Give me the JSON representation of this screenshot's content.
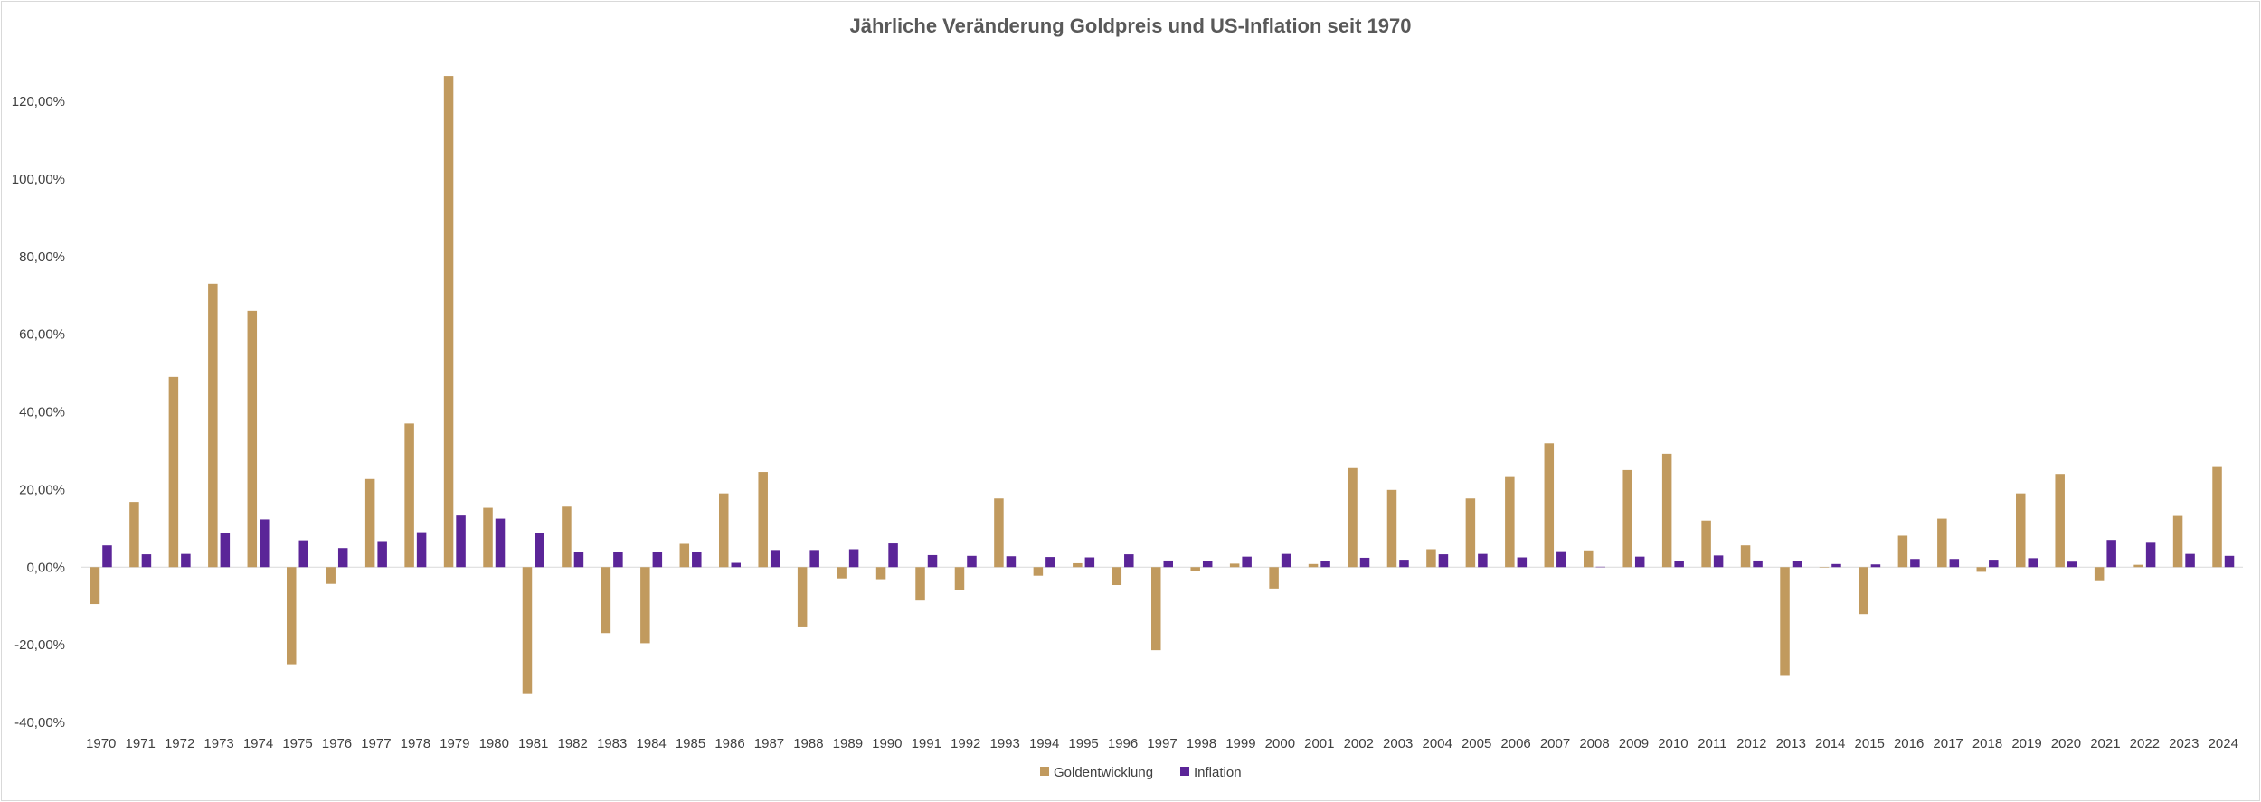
{
  "chart_data": {
    "type": "bar",
    "title": "Jährliche Veränderung Goldpreis und US-Inflation seit 1970",
    "xlabel": "",
    "ylabel": "",
    "ylim": [
      -0.4,
      1.3
    ],
    "y_ticks": [
      -0.4,
      -0.2,
      0,
      0.2,
      0.4,
      0.6,
      0.8,
      1.0,
      1.2
    ],
    "y_tick_labels": [
      "-40,00%",
      "-20,00%",
      "0,00%",
      "20,00%",
      "40,00%",
      "60,00%",
      "80,00%",
      "100,00%",
      "120,00%"
    ],
    "grid": false,
    "legend_position": "bottom-center",
    "categories": [
      "1970",
      "1971",
      "1972",
      "1973",
      "1974",
      "1975",
      "1976",
      "1977",
      "1978",
      "1979",
      "1980",
      "1981",
      "1982",
      "1983",
      "1984",
      "1985",
      "1986",
      "1987",
      "1988",
      "1989",
      "1990",
      "1991",
      "1992",
      "1993",
      "1994",
      "1995",
      "1996",
      "1997",
      "1998",
      "1999",
      "2000",
      "2001",
      "2002",
      "2003",
      "2004",
      "2005",
      "2006",
      "2007",
      "2008",
      "2009",
      "2010",
      "2011",
      "2012",
      "2013",
      "2014",
      "2015",
      "2016",
      "2017",
      "2018",
      "2019",
      "2020",
      "2021",
      "2022",
      "2023",
      "2024"
    ],
    "series": [
      {
        "name": "Goldentwicklung",
        "color": "#c19a5e",
        "values": [
          -0.095,
          0.168,
          0.49,
          0.73,
          0.66,
          -0.25,
          -0.043,
          0.227,
          0.37,
          1.265,
          0.153,
          -0.327,
          0.156,
          -0.17,
          -0.196,
          0.06,
          0.19,
          0.245,
          -0.153,
          -0.029,
          -0.031,
          -0.086,
          -0.059,
          0.177,
          -0.022,
          0.01,
          -0.046,
          -0.214,
          -0.009,
          0.009,
          -0.055,
          0.008,
          0.255,
          0.199,
          0.046,
          0.177,
          0.232,
          0.319,
          0.043,
          0.25,
          0.292,
          0.12,
          0.056,
          -0.28,
          0.0,
          -0.121,
          0.081,
          0.125,
          -0.012,
          0.19,
          0.24,
          -0.036,
          0.006,
          0.132,
          0.26
        ]
      },
      {
        "name": "Inflation",
        "color": "#5b2598",
        "values": [
          0.056,
          0.033,
          0.034,
          0.087,
          0.123,
          0.069,
          0.049,
          0.067,
          0.09,
          0.133,
          0.125,
          0.089,
          0.039,
          0.038,
          0.039,
          0.038,
          0.011,
          0.044,
          0.044,
          0.046,
          0.061,
          0.031,
          0.029,
          0.028,
          0.026,
          0.025,
          0.033,
          0.017,
          0.016,
          0.027,
          0.034,
          0.016,
          0.024,
          0.019,
          0.033,
          0.034,
          0.025,
          0.041,
          0.001,
          0.027,
          0.015,
          0.03,
          0.017,
          0.015,
          0.008,
          0.007,
          0.021,
          0.021,
          0.019,
          0.023,
          0.014,
          0.07,
          0.065,
          0.034,
          0.029
        ]
      }
    ]
  }
}
